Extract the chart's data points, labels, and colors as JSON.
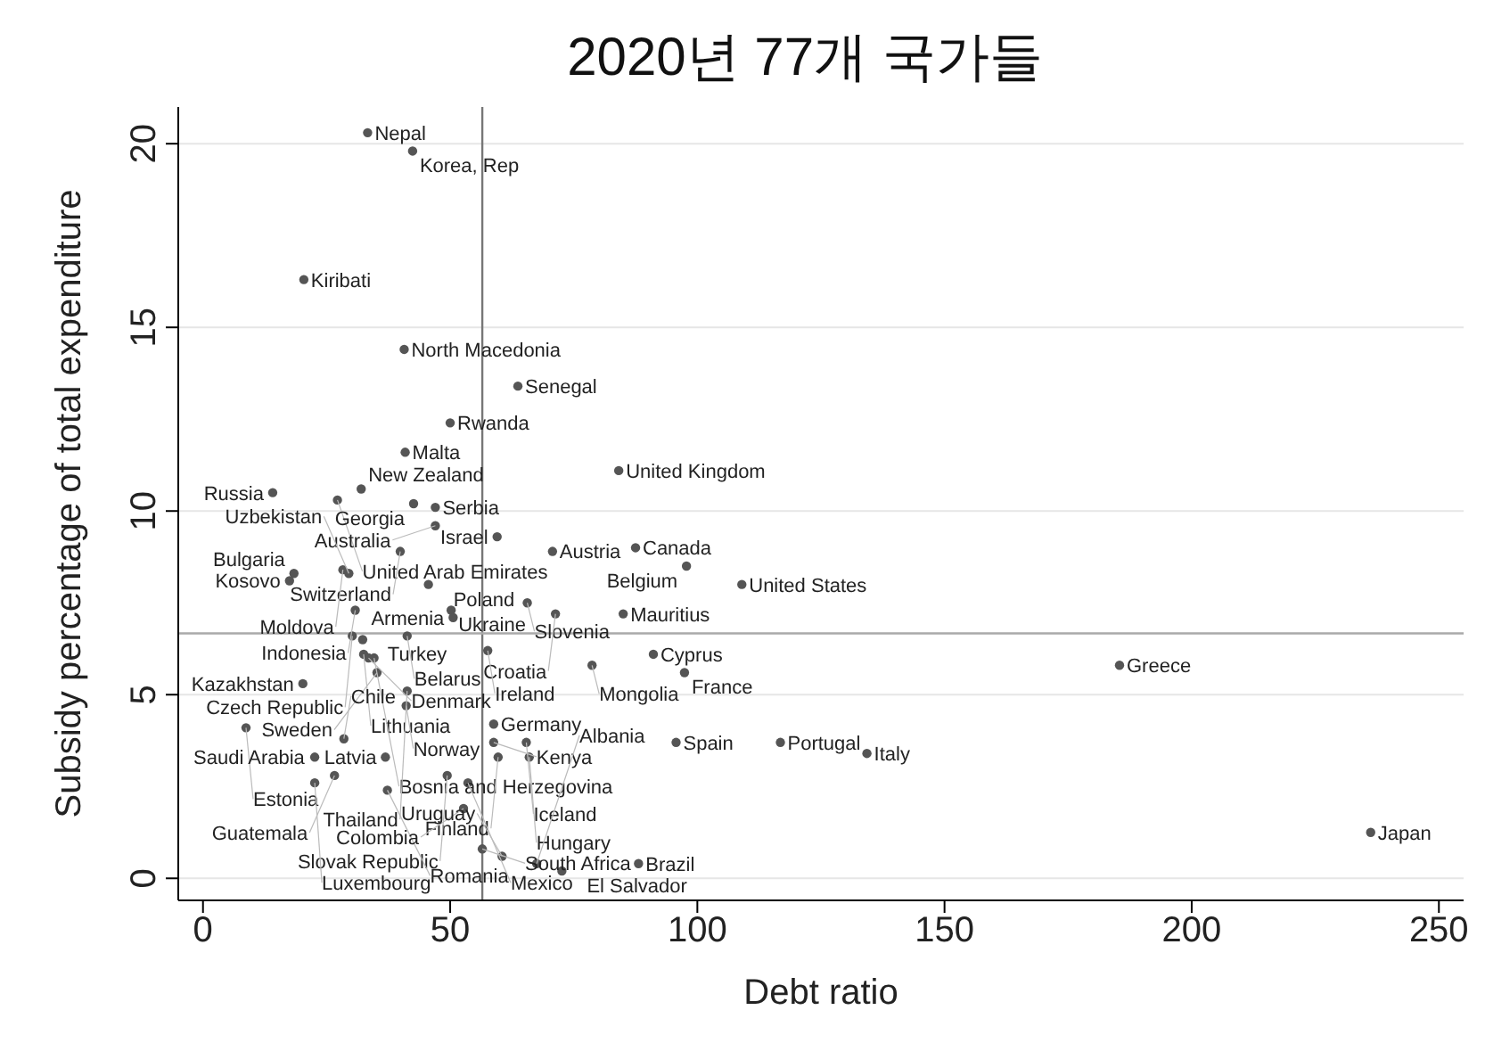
{
  "chart_data": {
    "type": "scatter",
    "title": "2020년 77개 국가들",
    "xlabel": "Debt ratio",
    "ylabel": "Subsidy percentage of total expenditure",
    "x": [
      33.3,
      42.4,
      20.4,
      40.7,
      63.7,
      50.0,
      40.9,
      84.1,
      14.1,
      32.0,
      27.2,
      42.6,
      47.0,
      47.0,
      59.5,
      39.9,
      70.7,
      87.5,
      97.8,
      109.0,
      18.4,
      17.5,
      28.3,
      29.5,
      45.6,
      30.8,
      50.2,
      65.6,
      50.6,
      71.3,
      85.0,
      30.2,
      32.3,
      41.3,
      32.5,
      33.5,
      34.6,
      57.6,
      78.7,
      91.1,
      97.4,
      185.4,
      35.2,
      20.2,
      41.3,
      41.1,
      8.7,
      28.5,
      58.8,
      58.8,
      65.4,
      95.7,
      116.8,
      134.3,
      22.6,
      36.9,
      59.7,
      66.0,
      49.4,
      26.6,
      22.6,
      37.3,
      53.6,
      52.7,
      56.5,
      60.5,
      67.5,
      72.6,
      88.1,
      236.2
    ],
    "values": [
      20.3,
      19.8,
      16.3,
      14.4,
      13.4,
      12.4,
      11.6,
      11.1,
      10.5,
      10.6,
      10.3,
      10.2,
      10.1,
      9.6,
      9.3,
      8.9,
      8.9,
      9.0,
      8.5,
      8.0,
      8.3,
      8.1,
      8.4,
      8.3,
      8.0,
      7.3,
      7.3,
      7.5,
      7.1,
      7.2,
      7.2,
      6.6,
      6.5,
      6.6,
      6.1,
      6.0,
      6.0,
      6.2,
      5.8,
      6.1,
      5.6,
      5.8,
      5.6,
      5.3,
      5.1,
      4.7,
      4.1,
      3.8,
      4.2,
      3.7,
      3.7,
      3.7,
      3.7,
      3.4,
      3.3,
      3.3,
      3.3,
      3.3,
      2.8,
      2.8,
      2.6,
      2.4,
      2.6,
      1.9,
      0.8,
      0.6,
      0.4,
      0.2,
      0.4,
      1.25
    ],
    "color": "#555555",
    "marker": "circle",
    "xlim": [
      -5,
      255
    ],
    "ylim": [
      -0.6,
      21
    ],
    "xticks": [
      0,
      50,
      100,
      150,
      200,
      250
    ],
    "yticks": [
      0,
      5,
      10,
      15,
      20
    ],
    "grid": "y",
    "ref_lines": [
      {
        "axis": "x",
        "value": 56.5,
        "color": "#777777"
      },
      {
        "axis": "y",
        "value": 6.67,
        "color": "#aaaaaa"
      }
    ],
    "annotations": [
      {
        "text": "Nepal",
        "x": 33.3,
        "y": 20.3
      },
      {
        "text": "Korea, Rep",
        "x": 42.4,
        "y": 19.8
      },
      {
        "text": "Kiribati",
        "x": 20.4,
        "y": 16.3
      },
      {
        "text": "North Macedonia",
        "x": 40.7,
        "y": 14.4
      },
      {
        "text": "Senegal",
        "x": 63.7,
        "y": 13.4
      },
      {
        "text": "Rwanda",
        "x": 50.0,
        "y": 12.4
      },
      {
        "text": "Malta",
        "x": 40.9,
        "y": 11.6
      },
      {
        "text": "United Kingdom",
        "x": 84.1,
        "y": 11.1
      },
      {
        "text": "Russia",
        "x": 14.1,
        "y": 10.5
      },
      {
        "text": "New Zealand",
        "x": 32.0,
        "y": 10.6
      },
      {
        "text": "United Arab Emirates",
        "x": 27.2,
        "y": 10.3
      },
      {
        "text": "Georgia",
        "x": 42.6,
        "y": 10.2
      },
      {
        "text": "Serbia",
        "x": 47.0,
        "y": 10.1
      },
      {
        "text": "Australia",
        "x": 47.0,
        "y": 9.6
      },
      {
        "text": "Israel",
        "x": 59.5,
        "y": 9.3
      },
      {
        "text": "Switzerland",
        "x": 39.9,
        "y": 8.9
      },
      {
        "text": "Austria",
        "x": 70.7,
        "y": 8.9
      },
      {
        "text": "Canada",
        "x": 87.5,
        "y": 9.0
      },
      {
        "text": "Belgium",
        "x": 97.8,
        "y": 8.5
      },
      {
        "text": "United States",
        "x": 109.0,
        "y": 8.0
      },
      {
        "text": "Bulgaria",
        "x": 18.4,
        "y": 8.3
      },
      {
        "text": "Kosovo",
        "x": 17.5,
        "y": 8.1
      },
      {
        "text": "Moldova",
        "x": 28.3,
        "y": 8.4
      },
      {
        "text": "Uzbekistan",
        "x": 29.5,
        "y": 8.3
      },
      {
        "text": "Poland",
        "x": 45.6,
        "y": 8.0
      },
      {
        "text": "Indonesia",
        "x": 30.8,
        "y": 7.3
      },
      {
        "text": "Ukraine",
        "x": 50.2,
        "y": 7.3
      },
      {
        "text": "Slovenia",
        "x": 65.6,
        "y": 7.5
      },
      {
        "text": "Armenia",
        "x": 50.6,
        "y": 7.1
      },
      {
        "text": "Croatia",
        "x": 71.3,
        "y": 7.2
      },
      {
        "text": "Mauritius",
        "x": 85.0,
        "y": 7.2
      },
      {
        "text": "Czech Republic",
        "x": 30.2,
        "y": 6.6
      },
      {
        "text": "Turkey",
        "x": 32.3,
        "y": 6.5
      },
      {
        "text": "Belarus",
        "x": 41.3,
        "y": 6.6
      },
      {
        "text": "Lithuania",
        "x": 32.5,
        "y": 6.1
      },
      {
        "text": "Denmark",
        "x": 33.5,
        "y": 6.0
      },
      {
        "text": "Bosnia and Herzegovina",
        "x": 34.6,
        "y": 6.0
      },
      {
        "text": "Ireland",
        "x": 57.6,
        "y": 6.2
      },
      {
        "text": "Mongolia",
        "x": 78.7,
        "y": 5.8
      },
      {
        "text": "Cyprus",
        "x": 91.1,
        "y": 6.1
      },
      {
        "text": "France",
        "x": 97.4,
        "y": 5.6
      },
      {
        "text": "Greece",
        "x": 185.4,
        "y": 5.8
      },
      {
        "text": "Sweden",
        "x": 35.2,
        "y": 5.6
      },
      {
        "text": "Kazakhstan",
        "x": 20.2,
        "y": 5.3
      },
      {
        "text": "Thailand",
        "x": 41.3,
        "y": 5.1
      },
      {
        "text": "Norway",
        "x": 41.1,
        "y": 4.7
      },
      {
        "text": "Estonia",
        "x": 8.7,
        "y": 4.1
      },
      {
        "text": "Chile",
        "x": 28.5,
        "y": 3.8
      },
      {
        "text": "Germany",
        "x": 58.8,
        "y": 4.2
      },
      {
        "text": "Kenya",
        "x": 58.8,
        "y": 3.7
      },
      {
        "text": "Iceland",
        "x": 65.4,
        "y": 3.7
      },
      {
        "text": "Spain",
        "x": 95.7,
        "y": 3.7
      },
      {
        "text": "Portugal",
        "x": 116.8,
        "y": 3.7
      },
      {
        "text": "Italy",
        "x": 134.3,
        "y": 3.4
      },
      {
        "text": "Saudi Arabia",
        "x": 22.6,
        "y": 3.3
      },
      {
        "text": "Latvia",
        "x": 36.9,
        "y": 3.3
      },
      {
        "text": "Finland",
        "x": 59.7,
        "y": 3.3
      },
      {
        "text": "Hungary",
        "x": 66.0,
        "y": 3.3
      },
      {
        "text": "Slovak Republic",
        "x": 49.4,
        "y": 2.8
      },
      {
        "text": "Guatemala",
        "x": 26.6,
        "y": 2.8
      },
      {
        "text": "Luxembourg",
        "x": 22.6,
        "y": 2.6
      },
      {
        "text": "Romania",
        "x": 37.3,
        "y": 2.4
      },
      {
        "text": "Mexico",
        "x": 53.6,
        "y": 2.6
      },
      {
        "text": "Colombia",
        "x": 52.7,
        "y": 1.9
      },
      {
        "text": "South Africa",
        "x": 56.5,
        "y": 0.8
      },
      {
        "text": "Uruguay",
        "x": 60.5,
        "y": 0.6
      },
      {
        "text": "Albania",
        "x": 67.5,
        "y": 0.4
      },
      {
        "text": "El Salvador",
        "x": 72.6,
        "y": 0.2
      },
      {
        "text": "Brazil",
        "x": 88.1,
        "y": 0.4
      },
      {
        "text": "Japan",
        "x": 236.2,
        "y": 1.25
      }
    ]
  }
}
